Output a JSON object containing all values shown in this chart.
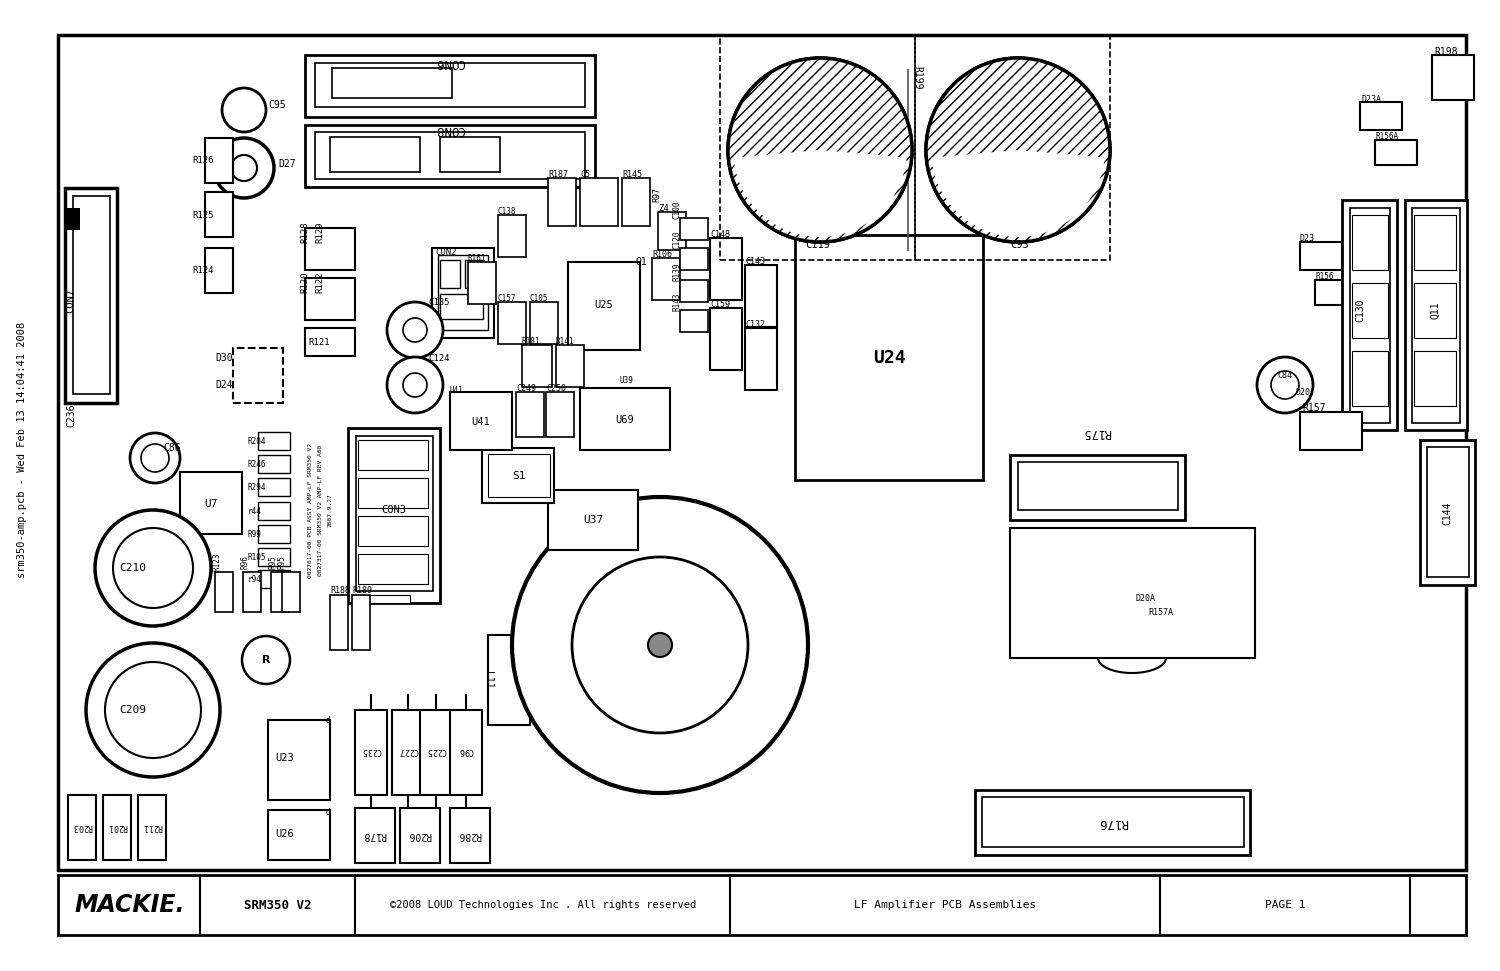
{
  "bg_color": "#ffffff",
  "border_color": "#000000",
  "title_left": "srm350-amp.pcb - Wed Feb 13 14:04:41 2008",
  "footer_mackie": "MACKIE.",
  "footer_model": "SRM350 V2",
  "footer_copyright": "©2008 LOUD Technologies Inc . All rights reserved",
  "footer_desc": "LF Amplifier PCB Assemblies",
  "footer_page": "PAGE 1"
}
